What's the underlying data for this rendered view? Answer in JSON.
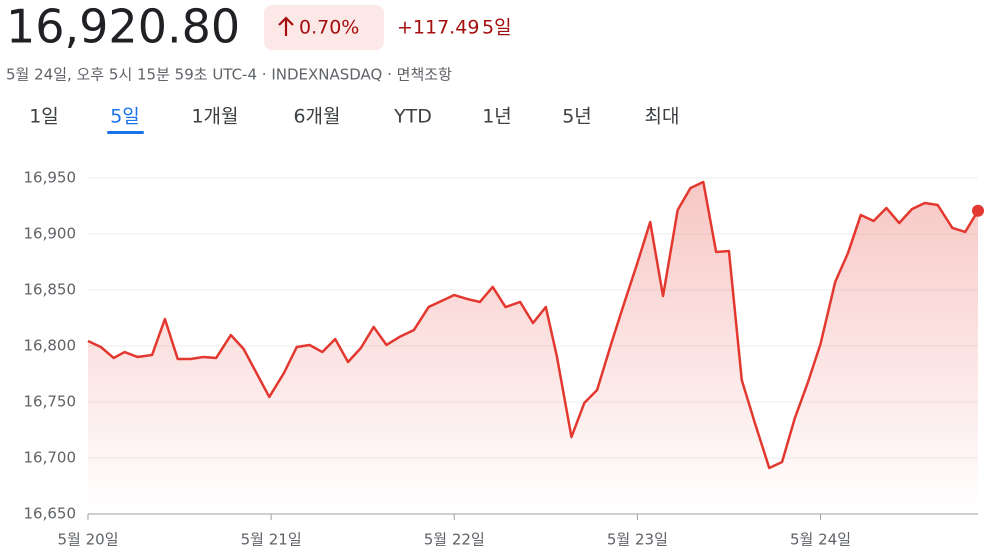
{
  "header": {
    "price": "16,920.80",
    "change_percent": "0.70%",
    "change": "+117.49",
    "change_period": "5일",
    "subtitle": "5월 24일, 오후 5시 15분 59초 UTC-4 · INDEXNASDAQ · 면책조항"
  },
  "tabs": [
    "1일",
    "5일",
    "1개월",
    "6개월",
    "YTD",
    "1년",
    "5년",
    "최대"
  ],
  "chart_data": {
    "type": "line",
    "color": "#e3382f",
    "grid": true,
    "x": [
      0,
      0.07,
      0.14,
      0.2,
      0.27,
      0.35,
      0.42,
      0.49,
      0.56,
      0.63,
      0.7,
      0.78,
      0.85,
      0.92,
      0.99,
      1.07,
      1.14,
      1.21,
      1.28,
      1.35,
      1.42,
      1.49,
      1.56,
      1.63,
      1.7,
      1.78,
      1.86,
      1.93,
      2.0,
      2.07,
      2.14,
      2.21,
      2.28,
      2.36,
      2.43,
      2.5,
      2.56,
      2.64,
      2.71,
      2.78,
      2.86,
      2.93,
      3.0,
      3.07,
      3.14,
      3.22,
      3.29,
      3.36,
      3.43,
      3.5,
      3.57,
      3.64,
      3.72,
      3.79,
      3.86,
      3.93,
      4.0,
      4.08,
      4.15,
      4.22,
      4.29,
      4.36,
      4.43,
      4.5,
      4.57,
      4.64,
      4.72,
      4.79,
      4.86
    ],
    "values": [
      16804.5,
      16799.1,
      16789.3,
      16794.6,
      16790.2,
      16792,
      16824.1,
      16788.4,
      16788.4,
      16790.2,
      16789.3,
      16809.8,
      16797.3,
      16775.9,
      16754.5,
      16775.9,
      16799.1,
      16800.9,
      16794.6,
      16806.2,
      16785.7,
      16798.2,
      16817,
      16800.9,
      16808,
      16814.3,
      16834.8,
      16840.2,
      16845.5,
      16842,
      16839.3,
      16852.7,
      16834.8,
      16839.3,
      16820.5,
      16834.8,
      16791.1,
      16718.7,
      16749.1,
      16760.7,
      16803.6,
      16839.3,
      16874.1,
      16910.7,
      16844.6,
      16921.4,
      16941.1,
      16946.4,
      16883.9,
      16884.8,
      16769.6,
      16732.1,
      16691.1,
      16696.4,
      16735.7,
      16767,
      16801.8,
      16857.1,
      16883,
      16917,
      16911.6,
      16923.2,
      16909.8,
      16922.3,
      16927.7,
      16925.9,
      16905.4,
      16901.8,
      16920.8
    ],
    "xlim": [
      0,
      4.86
    ],
    "xticks": [
      {
        "value": 0,
        "label": "5월 20일"
      },
      {
        "value": 1,
        "label": "5월 21일"
      },
      {
        "value": 2,
        "label": "5월 22일"
      },
      {
        "value": 3,
        "label": "5월 23일"
      },
      {
        "value": 4,
        "label": "5월 24일"
      }
    ],
    "ylim": [
      16650,
      16950
    ],
    "yticks": [
      {
        "value": 16650,
        "label": "16,650"
      },
      {
        "value": 16700,
        "label": "16,700"
      },
      {
        "value": 16750,
        "label": "16,750"
      },
      {
        "value": 16800,
        "label": "16,800"
      },
      {
        "value": 16850,
        "label": "16,850"
      },
      {
        "value": 16900,
        "label": "16,900"
      },
      {
        "value": 16950,
        "label": "16,950"
      }
    ]
  }
}
